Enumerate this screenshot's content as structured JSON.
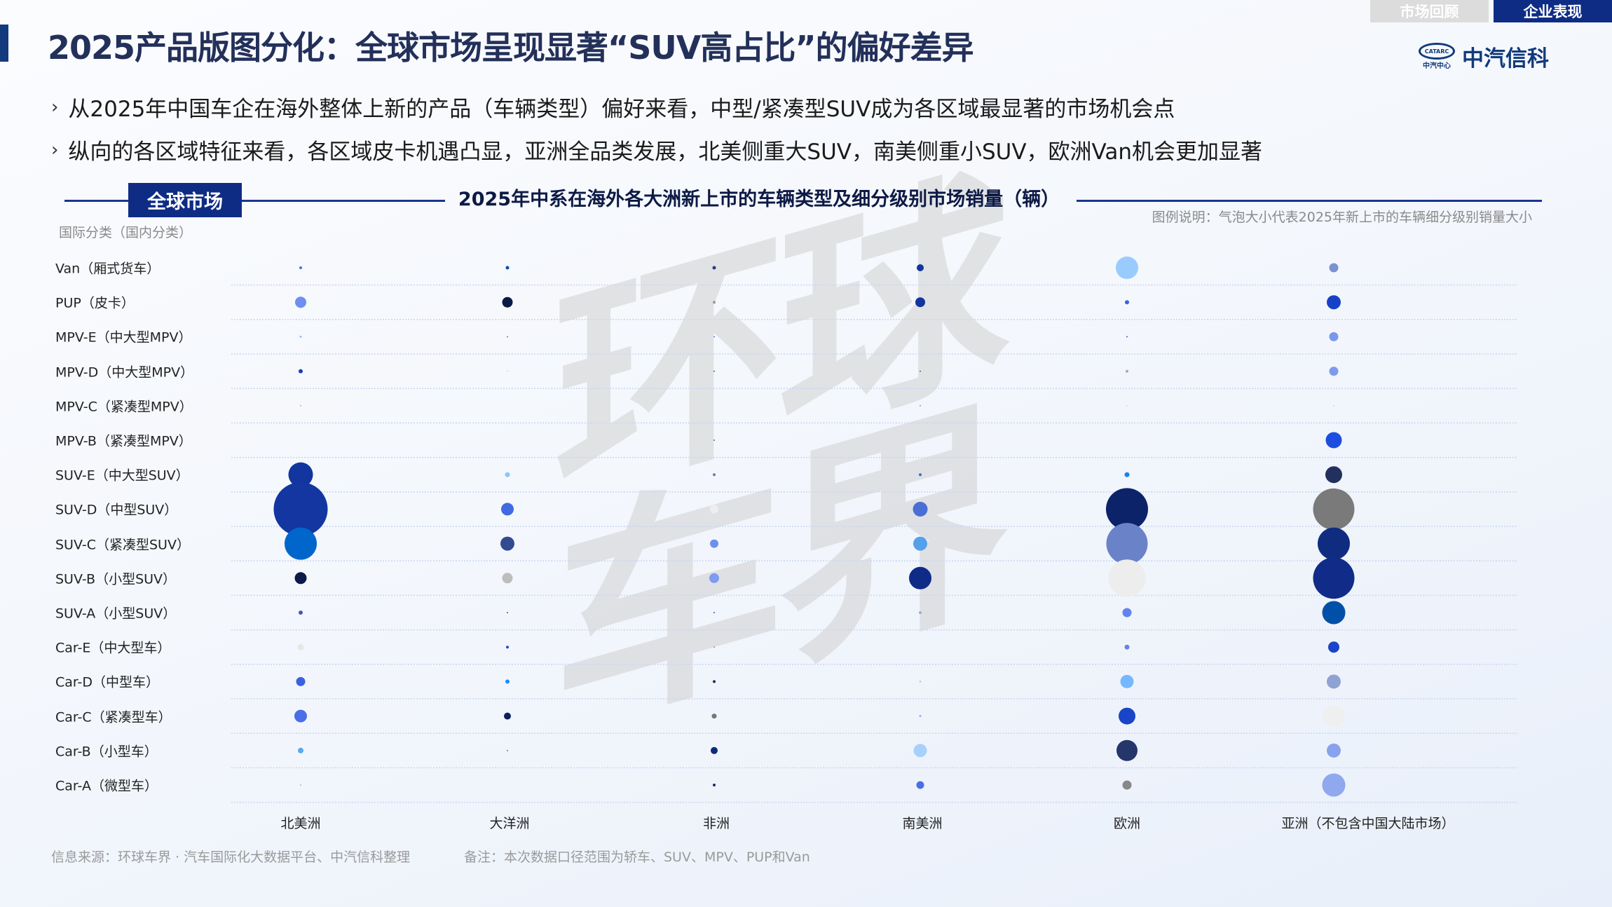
{
  "header": {
    "title": "2025产品版图分化：全球市场呈现显著“SUV高占比”的偏好差异",
    "tabs": [
      {
        "label": "市场回顾",
        "active": false
      },
      {
        "label": "企业表现",
        "active": true
      }
    ],
    "logo": {
      "mark_text": "CATARC",
      "mark_sub": "中汽中心",
      "name": "中汽信科"
    }
  },
  "bullets": [
    "从2025年中国车企在海外整体上新的产品（车辆类型）偏好来看，中型/紧凑型SUV成为各区域最显著的市场机会点",
    "纵向的各区域特征来看，各区域皮卡机遇凸显，亚洲全品类发展，北美侧重大SUV，南美侧重小SUV，欧洲Van机会更加显著"
  ],
  "section": {
    "market_label": "全球市场"
  },
  "watermark": "环球车界",
  "colors": {
    "accent": "#0f2c85",
    "title": "#23305a",
    "inactive_tab": "#dcdcdc"
  },
  "chart_data": {
    "type": "bubble",
    "title": "2025年中系在海外各大洲新上市的车辆类型及细分级别市场销量（辆）",
    "legend_note": "图例说明：气泡大小代表2025年新上市的车辆细分级别销量大小",
    "ylabel": "国际分类（国内分类）",
    "y_categories": [
      "Van（厢式货车）",
      "PUP（皮卡）",
      "MPV-E（中大型MPV）",
      "MPV-D（中大型MPV）",
      "MPV-C（紧凑型MPV）",
      "MPV-B（紧凑型MPV）",
      "SUV-E（中大型SUV）",
      "SUV-D（中型SUV）",
      "SUV-C（紧凑型SUV）",
      "SUV-B（小型SUV）",
      "SUV-A（小型SUV）",
      "Car-E（中大型车）",
      "Car-D（中型车）",
      "Car-C（紧凑型车）",
      "Car-B（小型车）",
      "Car-A（微型车）"
    ],
    "x_categories": [
      "北美洲",
      "大洋洲",
      "非洲",
      "南美洲",
      "欧洲",
      "亚洲（不包含中国大陆市场）"
    ],
    "value_note": "relative sales volume estimated from bubble area (largest = 100)",
    "series": [
      {
        "values": [
          0.27,
          4.32,
          0.15,
          0.61,
          0.04,
          0,
          20.7,
          100,
          35.7,
          4.87,
          0.61,
          1.37,
          2.85,
          5.46,
          1.08,
          0.02
        ],
        "colors": [
          "#4a6fe0",
          "#6f8ff0",
          "#9ab8f0",
          "#1b3fc0",
          "#888888",
          "#888888",
          "#12359e",
          "#1336a0",
          "#0066cc",
          "#0b1a4a",
          "#4a5aa8",
          "#e6e6e6",
          "#3a62e0",
          "#4a6ee6",
          "#5aa8f0",
          "#888888"
        ]
      },
      {
        "values": [
          0.42,
          3.79,
          0.07,
          0.02,
          0,
          0,
          0.83,
          5.46,
          6.75,
          3.79,
          0.07,
          0.27,
          0.61,
          1.69,
          0.07,
          0
        ],
        "colors": [
          "#0a4fa8",
          "#0b1a44",
          "#5a7ae0",
          "#cccccc",
          "#cccccc",
          "#cccccc",
          "#8fc4fa",
          "#4169e1",
          "#334a90",
          "#bdbdbd",
          "#3a5ad0",
          "#2a4ad0",
          "#1a8cff",
          "#0d1f5c",
          "#5a7ae0",
          "#cccccc"
        ]
      },
      {
        "values": [
          0.42,
          0.27,
          0.07,
          0.07,
          0,
          0.07,
          0.27,
          2.43,
          2.43,
          3.31,
          0.07,
          0.07,
          0.27,
          0.83,
          1.69,
          0.27
        ],
        "colors": [
          "#2a3a80",
          "#999999",
          "#5a7ae0",
          "#3a5ad0",
          "#999999",
          "#666666",
          "#6a7ab0",
          "#eeeeee",
          "#6f8ff0",
          "#7f9af0",
          "#3a5ad0",
          "#999999",
          "#1a2a5a",
          "#777777",
          "#0d2a7a",
          "#1a2a6a"
        ]
      },
      {
        "values": [
          1.69,
          3.31,
          0,
          0.02,
          0.02,
          0,
          0.27,
          7.44,
          6.75,
          17.3,
          0.27,
          0,
          0.07,
          0.15,
          6.09,
          2.04
        ],
        "colors": [
          "#12359e",
          "#12359e",
          "#cccccc",
          "#1a2a5a",
          "#3a5ad0",
          "#cccccc",
          "#3a6ae0",
          "#4a6ed6",
          "#56a0ea",
          "#102a88",
          "#9aaae0",
          "#cccccc",
          "#aaaaaa",
          "#9aaae8",
          "#a8d0fc",
          "#4a6ee6"
        ]
      },
      {
        "values": [
          17.3,
          0.61,
          0.07,
          0.27,
          0.02,
          0,
          0.83,
          60.7,
          58.7,
          47.4,
          2.85,
          0.83,
          6.09,
          9.71,
          15.2,
          2.85
        ],
        "colors": [
          "#99cbff",
          "#3a62e8",
          "#3a5ad0",
          "#aaaaaa",
          "#cccccc",
          "#cccccc",
          "#1a80f0",
          "#0c236a",
          "#6a82c8",
          "#ededed",
          "#6284ee",
          "#6a80e8",
          "#75b8ff",
          "#1a45c8",
          "#25366a",
          "#888888"
        ]
      },
      {
        "values": [
          2.85,
          6.75,
          2.85,
          2.85,
          0.02,
          8.92,
          9.71,
          58.7,
          35.7,
          58.7,
          18.4,
          4.32,
          6.75,
          16.2,
          6.75,
          18.4
        ],
        "colors": [
          "#7b92d0",
          "#1742c8",
          "#7a98ea",
          "#7f9aea",
          "#cccccc",
          "#1d4de0",
          "#22305e",
          "#7a7a7a",
          "#102c80",
          "#102c88",
          "#0050a8",
          "#1a45c8",
          "#90a2d2",
          "#efefef",
          "#8aa2ee",
          "#8fa8ee"
        ]
      }
    ],
    "grid": "dotted horizontal",
    "legend": "none"
  },
  "footer": {
    "source": "信息来源：环球车界 · 汽车国际化大数据平台、中汽信科整理",
    "note": "备注：本次数据口径范围为轿车、SUV、MPV、PUP和Van"
  }
}
